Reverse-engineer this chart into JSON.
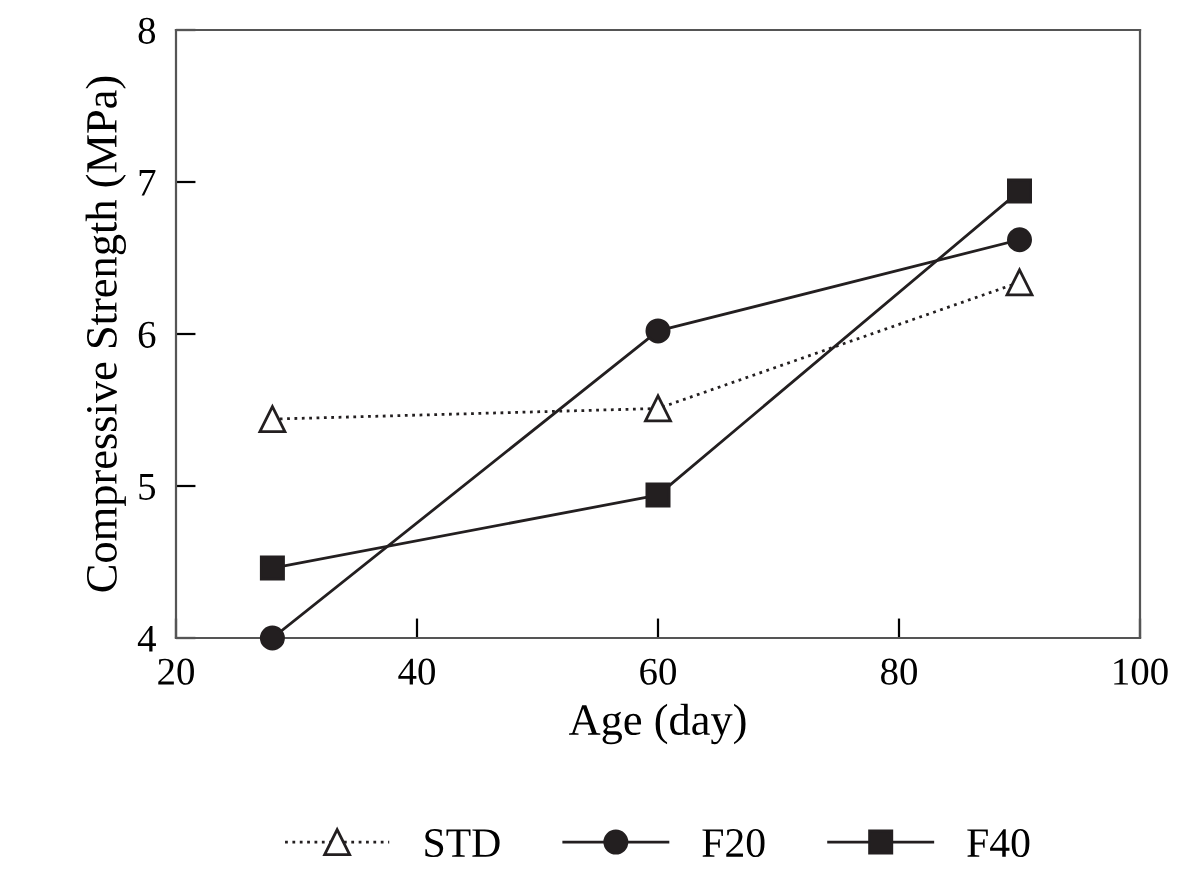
{
  "chart_data": {
    "type": "line",
    "xlabel": "Age (day)",
    "ylabel": "Compressive Strength (MPa)",
    "x": [
      28,
      60,
      90
    ],
    "series": [
      {
        "name": "STD",
        "color": "#231f20",
        "values": [
          5.44,
          5.51,
          6.34
        ],
        "marker": "triangle",
        "line_style": "dotted"
      },
      {
        "name": "F20",
        "color": "#231f20",
        "values": [
          4.0,
          6.02,
          6.62
        ],
        "marker": "circle",
        "line_style": "solid"
      },
      {
        "name": "F40",
        "color": "#231f20",
        "values": [
          4.46,
          4.94,
          6.94
        ],
        "marker": "square",
        "line_style": "solid"
      }
    ],
    "xlim": [
      20,
      100
    ],
    "xticks": [
      20,
      40,
      60,
      80,
      100
    ],
    "ylim": [
      4,
      8
    ],
    "yticks": [
      4,
      5,
      6,
      7,
      8
    ],
    "grid": false,
    "legend": "bottom"
  }
}
